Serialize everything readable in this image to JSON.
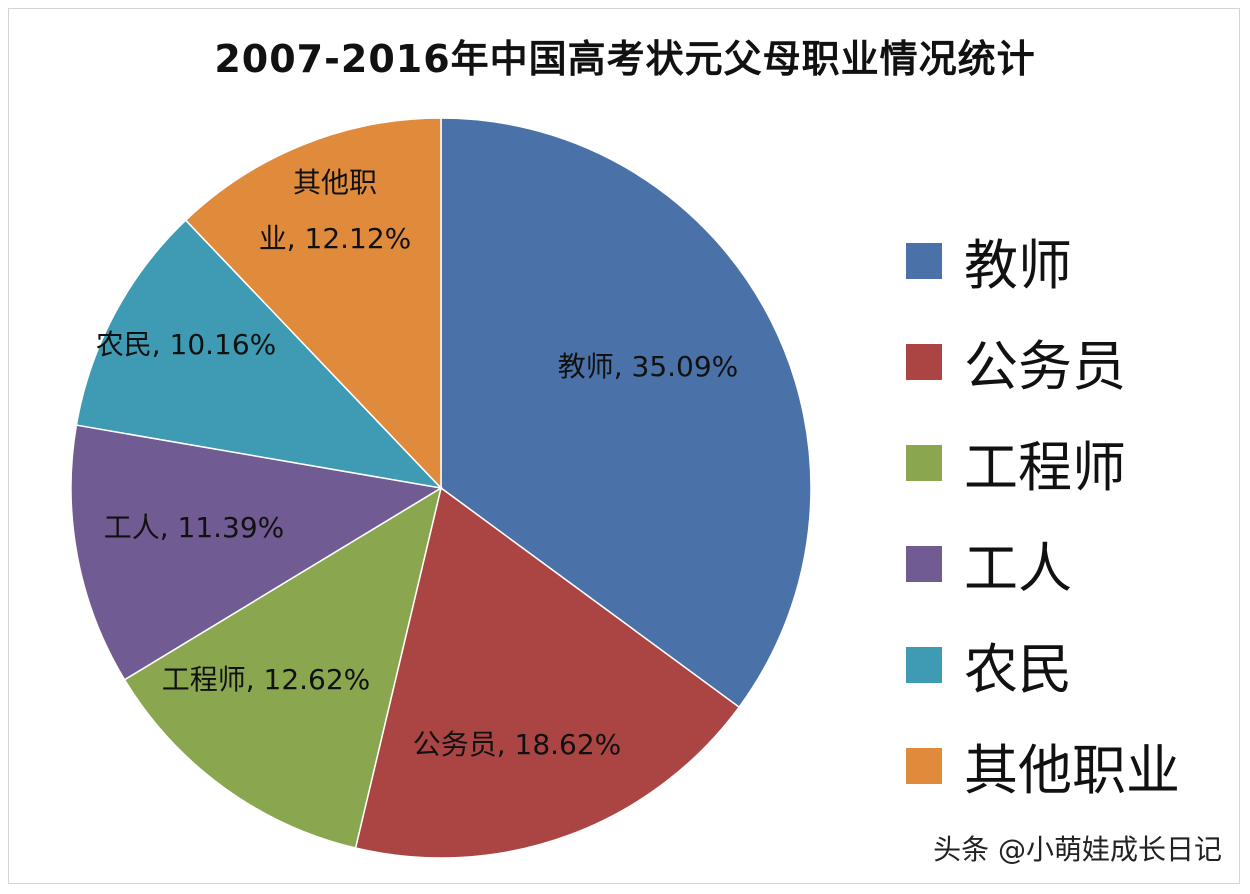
{
  "chart_data": {
    "type": "pie",
    "title": "2007-2016年中国高考状元父母职业情况统计",
    "slices": [
      {
        "name": "教师",
        "value": 35.09,
        "label": "教师, 35.09%",
        "color": "#4a72a9"
      },
      {
        "name": "公务员",
        "value": 18.62,
        "label": "公务员, 18.62%",
        "color": "#ab4543"
      },
      {
        "name": "工程师",
        "value": 12.62,
        "label": "工程师, 12.62%",
        "color": "#8aa74f"
      },
      {
        "name": "工人",
        "value": 11.39,
        "label": "工人, 11.39%",
        "color": "#705c93"
      },
      {
        "name": "农民",
        "value": 10.16,
        "label": "农民, 10.16%",
        "color": "#3e9bb3"
      },
      {
        "name": "其他职业",
        "value": 12.12,
        "label_lines": [
          "其他职",
          "业, 12.12%"
        ],
        "color": "#e08a3c"
      }
    ],
    "legend": {
      "placement": "right",
      "entries": [
        "教师",
        "公务员",
        "工程师",
        "工人",
        "农民",
        "其他职业"
      ]
    }
  },
  "watermark": "头条 @小萌娃成长日记"
}
